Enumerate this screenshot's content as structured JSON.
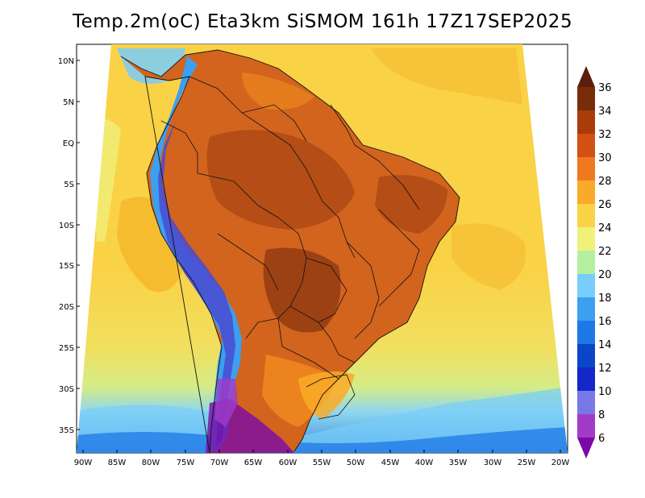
{
  "title": "Temp.2m(oC) Eta3km SiSMOM 161h 17Z17SEP2025",
  "lat_labels": [
    "10N",
    "5N",
    "EQ",
    "5S",
    "10S",
    "15S",
    "20S",
    "25S",
    "30S",
    "35S"
  ],
  "lon_labels": [
    "90W",
    "85W",
    "80W",
    "75W",
    "70W",
    "65W",
    "60W",
    "55W",
    "50W",
    "45W",
    "40W",
    "35W",
    "30W",
    "25W",
    "20W"
  ],
  "colorbar": {
    "levels": [
      "6",
      "8",
      "10",
      "12",
      "14",
      "16",
      "18",
      "20",
      "22",
      "24",
      "26",
      "28",
      "30",
      "32",
      "34",
      "36"
    ],
    "colors": [
      "#7a0aa8",
      "#a03cc8",
      "#7878e8",
      "#1428c8",
      "#0a46c8",
      "#1e78e6",
      "#3c9ff0",
      "#78cdfa",
      "#b4f0a0",
      "#f0f07a",
      "#fad246",
      "#faaa28",
      "#f07820",
      "#d25014",
      "#aa3c0a",
      "#782d0a",
      "#5a1e0a"
    ]
  },
  "field_colors": {
    "ocean": "#fad246",
    "ocean_warm": "#f5b92e",
    "ocean_cool": "#f0f07a",
    "south_ocean": "#b4f0a0",
    "land": "#d2641e",
    "land_hot": "#aa4614",
    "andes": "#3c9ff0",
    "andes_cold": "#5050c8",
    "patagonia": "#7a0aa8"
  }
}
